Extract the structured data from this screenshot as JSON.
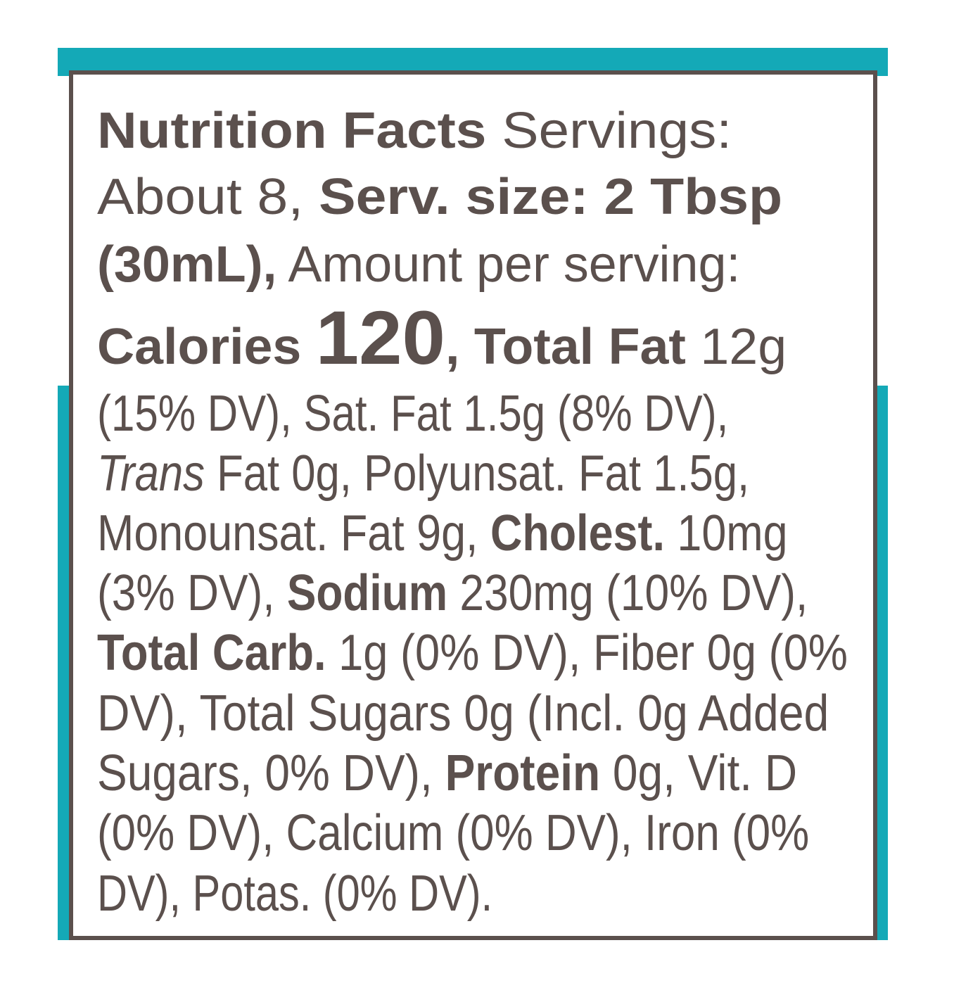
{
  "label": {
    "lines": [
      [
        {
          "text": "Nutrition Facts",
          "style": "bold"
        },
        {
          "text": " Servings:",
          "style": "regular"
        }
      ],
      [
        {
          "text": "About 8, ",
          "style": "regular"
        },
        {
          "text": "Serv. size: 2 Tbsp",
          "style": "bold"
        }
      ],
      [
        {
          "text": "(30mL),",
          "style": "bold"
        },
        {
          "text": " Amount per serving:",
          "style": "regular"
        }
      ],
      [
        {
          "text": "Calories ",
          "style": "bold"
        },
        {
          "text": "120",
          "style": "big"
        },
        {
          "text": ", Total Fat",
          "style": "bold"
        },
        {
          "text": " 12g",
          "style": "regular"
        }
      ],
      [
        {
          "text": "(15% DV), Sat. Fat 1.5g (8% DV),",
          "style": "regular"
        }
      ],
      [
        {
          "text": "Trans",
          "style": "italic"
        },
        {
          "text": " Fat 0g, Polyunsat. Fat 1.5g,",
          "style": "regular"
        }
      ],
      [
        {
          "text": "Monounsat. Fat 9g, ",
          "style": "regular"
        },
        {
          "text": "Cholest.",
          "style": "bold"
        },
        {
          "text": " 10mg",
          "style": "regular"
        }
      ],
      [
        {
          "text": "(3% DV), ",
          "style": "regular"
        },
        {
          "text": "Sodium",
          "style": "bold"
        },
        {
          "text": " 230mg (10% DV),",
          "style": "regular"
        }
      ],
      [
        {
          "text": "Total Carb.",
          "style": "bold"
        },
        {
          "text": " 1g (0% DV), Fiber 0g (0%",
          "style": "regular"
        }
      ],
      [
        {
          "text": "DV), Total Sugars 0g (Incl. 0g Added",
          "style": "regular"
        }
      ],
      [
        {
          "text": "Sugars, 0% DV), ",
          "style": "regular"
        },
        {
          "text": "Protein",
          "style": "bold"
        },
        {
          "text": " 0g, Vit. D",
          "style": "regular"
        }
      ],
      [
        {
          "text": "(0% DV), Calcium (0% DV), Iron (0%",
          "style": "regular"
        }
      ],
      [
        {
          "text": "DV), Potas. (0% DV).",
          "style": "regular"
        }
      ]
    ]
  }
}
